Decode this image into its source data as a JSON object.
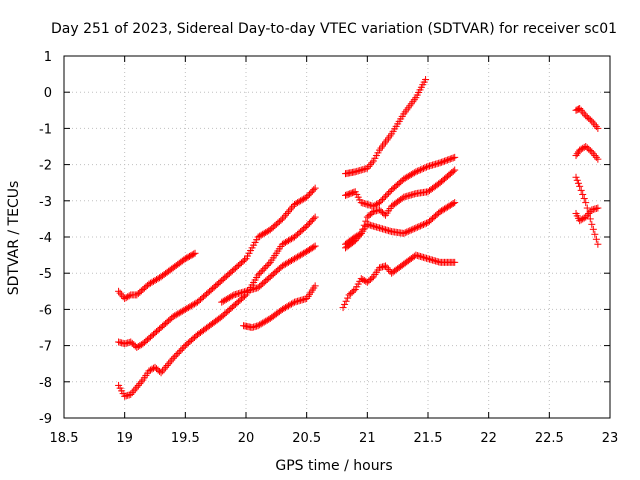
{
  "chart_data": {
    "type": "scatter",
    "title": "Day 251 of 2023, Sidereal Day-to-day VTEC variation (SDTVAR) for receiver sc01",
    "xlabel": "GPS time / hours",
    "ylabel": "SDTVAR / TECUs",
    "xlim": [
      18.5,
      23
    ],
    "ylim": [
      -9,
      1
    ],
    "xticks": [
      "18.5",
      "19",
      "19.5",
      "20",
      "20.5",
      "21",
      "21.5",
      "22",
      "22.5",
      "23"
    ],
    "yticks": [
      "-9",
      "-8",
      "-7",
      "-6",
      "-5",
      "-4",
      "-3",
      "-2",
      "-1",
      "0",
      "1"
    ],
    "grid": true,
    "marker": "+",
    "color": "#ff0000",
    "series": [
      {
        "x": [
          18.95,
          19.0,
          19.05,
          19.1,
          19.15,
          19.2,
          19.3,
          19.4,
          19.5,
          19.58
        ],
        "y": [
          -5.5,
          -5.7,
          -5.6,
          -5.6,
          -5.45,
          -5.3,
          -5.1,
          -4.85,
          -4.6,
          -4.45
        ]
      },
      {
        "x": [
          18.95,
          19.0,
          19.05,
          19.1,
          19.15,
          19.2,
          19.3,
          19.4,
          19.5,
          19.6,
          19.7,
          19.8,
          19.9,
          20.0,
          20.05,
          20.1,
          20.2,
          20.3,
          20.4,
          20.5,
          20.57
        ],
        "y": [
          -6.9,
          -6.95,
          -6.9,
          -7.05,
          -6.95,
          -6.8,
          -6.5,
          -6.2,
          -6.0,
          -5.8,
          -5.5,
          -5.2,
          -4.9,
          -4.6,
          -4.3,
          -4.0,
          -3.8,
          -3.5,
          -3.1,
          -2.9,
          -2.65
        ]
      },
      {
        "x": [
          18.95,
          19.0,
          19.05,
          19.1,
          19.15,
          19.2,
          19.25,
          19.3,
          19.4,
          19.5,
          19.6,
          19.7,
          19.8,
          19.9,
          20.0,
          20.1,
          20.2,
          20.3,
          20.4,
          20.5,
          20.57
        ],
        "y": [
          -8.1,
          -8.4,
          -8.35,
          -8.15,
          -7.95,
          -7.7,
          -7.6,
          -7.75,
          -7.35,
          -7.0,
          -6.7,
          -6.45,
          -6.2,
          -5.9,
          -5.6,
          -5.05,
          -4.7,
          -4.2,
          -4.0,
          -3.7,
          -3.45
        ]
      },
      {
        "x": [
          19.8,
          19.9,
          20.0,
          20.1,
          20.2,
          20.3,
          20.4,
          20.5,
          20.57
        ],
        "y": [
          -5.8,
          -5.6,
          -5.5,
          -5.4,
          -5.1,
          -4.8,
          -4.6,
          -4.4,
          -4.25
        ]
      },
      {
        "x": [
          19.98,
          20.05,
          20.1,
          20.2,
          20.3,
          20.4,
          20.5,
          20.57
        ],
        "y": [
          -6.45,
          -6.5,
          -6.45,
          -6.25,
          -6.0,
          -5.8,
          -5.7,
          -5.35
        ]
      },
      {
        "x": [
          20.82,
          20.9,
          20.95,
          21.0,
          21.05,
          21.1,
          21.2,
          21.3,
          21.4,
          21.48
        ],
        "y": [
          -2.25,
          -2.2,
          -2.15,
          -2.1,
          -1.9,
          -1.6,
          -1.15,
          -0.6,
          -0.15,
          0.35
        ]
      },
      {
        "x": [
          20.82,
          20.9,
          20.95,
          21.0,
          21.05,
          21.1,
          21.2,
          21.3,
          21.4,
          21.5,
          21.6,
          21.72
        ],
        "y": [
          -2.85,
          -2.75,
          -3.05,
          -3.1,
          -3.15,
          -3.05,
          -2.7,
          -2.4,
          -2.2,
          -2.05,
          -1.95,
          -1.8
        ]
      },
      {
        "x": [
          20.82,
          20.9,
          20.95,
          21.0,
          21.05,
          21.1,
          21.15,
          21.2,
          21.3,
          21.4,
          21.5,
          21.6,
          21.72
        ],
        "y": [
          -4.3,
          -4.1,
          -3.9,
          -3.45,
          -3.3,
          -3.25,
          -3.4,
          -3.15,
          -2.9,
          -2.8,
          -2.75,
          -2.5,
          -2.15
        ]
      },
      {
        "x": [
          20.82,
          20.9,
          20.95,
          21.0,
          21.1,
          21.2,
          21.3,
          21.4,
          21.5,
          21.6,
          21.72
        ],
        "y": [
          -4.2,
          -4.0,
          -3.9,
          -3.65,
          -3.75,
          -3.85,
          -3.9,
          -3.75,
          -3.6,
          -3.3,
          -3.05
        ]
      },
      {
        "x": [
          20.8,
          20.85,
          20.9,
          20.95,
          21.0,
          21.05,
          21.1,
          21.15,
          21.2,
          21.3,
          21.4,
          21.5,
          21.6,
          21.72
        ],
        "y": [
          -5.95,
          -5.6,
          -5.45,
          -5.15,
          -5.25,
          -5.1,
          -4.85,
          -4.8,
          -5.0,
          -4.75,
          -4.5,
          -4.6,
          -4.7,
          -4.7
        ]
      },
      {
        "x": [
          22.72,
          22.75,
          22.8,
          22.85,
          22.9
        ],
        "y": [
          -0.5,
          -0.45,
          -0.65,
          -0.8,
          -1.0
        ]
      },
      {
        "x": [
          22.72,
          22.75,
          22.8,
          22.85,
          22.9
        ],
        "y": [
          -1.75,
          -1.6,
          -1.5,
          -1.65,
          -1.85
        ]
      },
      {
        "x": [
          22.72,
          22.75,
          22.8,
          22.85,
          22.9
        ],
        "y": [
          -2.35,
          -2.6,
          -3.05,
          -3.65,
          -4.2
        ]
      },
      {
        "x": [
          22.72,
          22.75,
          22.8,
          22.85,
          22.9
        ],
        "y": [
          -3.35,
          -3.55,
          -3.45,
          -3.25,
          -3.2
        ]
      }
    ]
  }
}
